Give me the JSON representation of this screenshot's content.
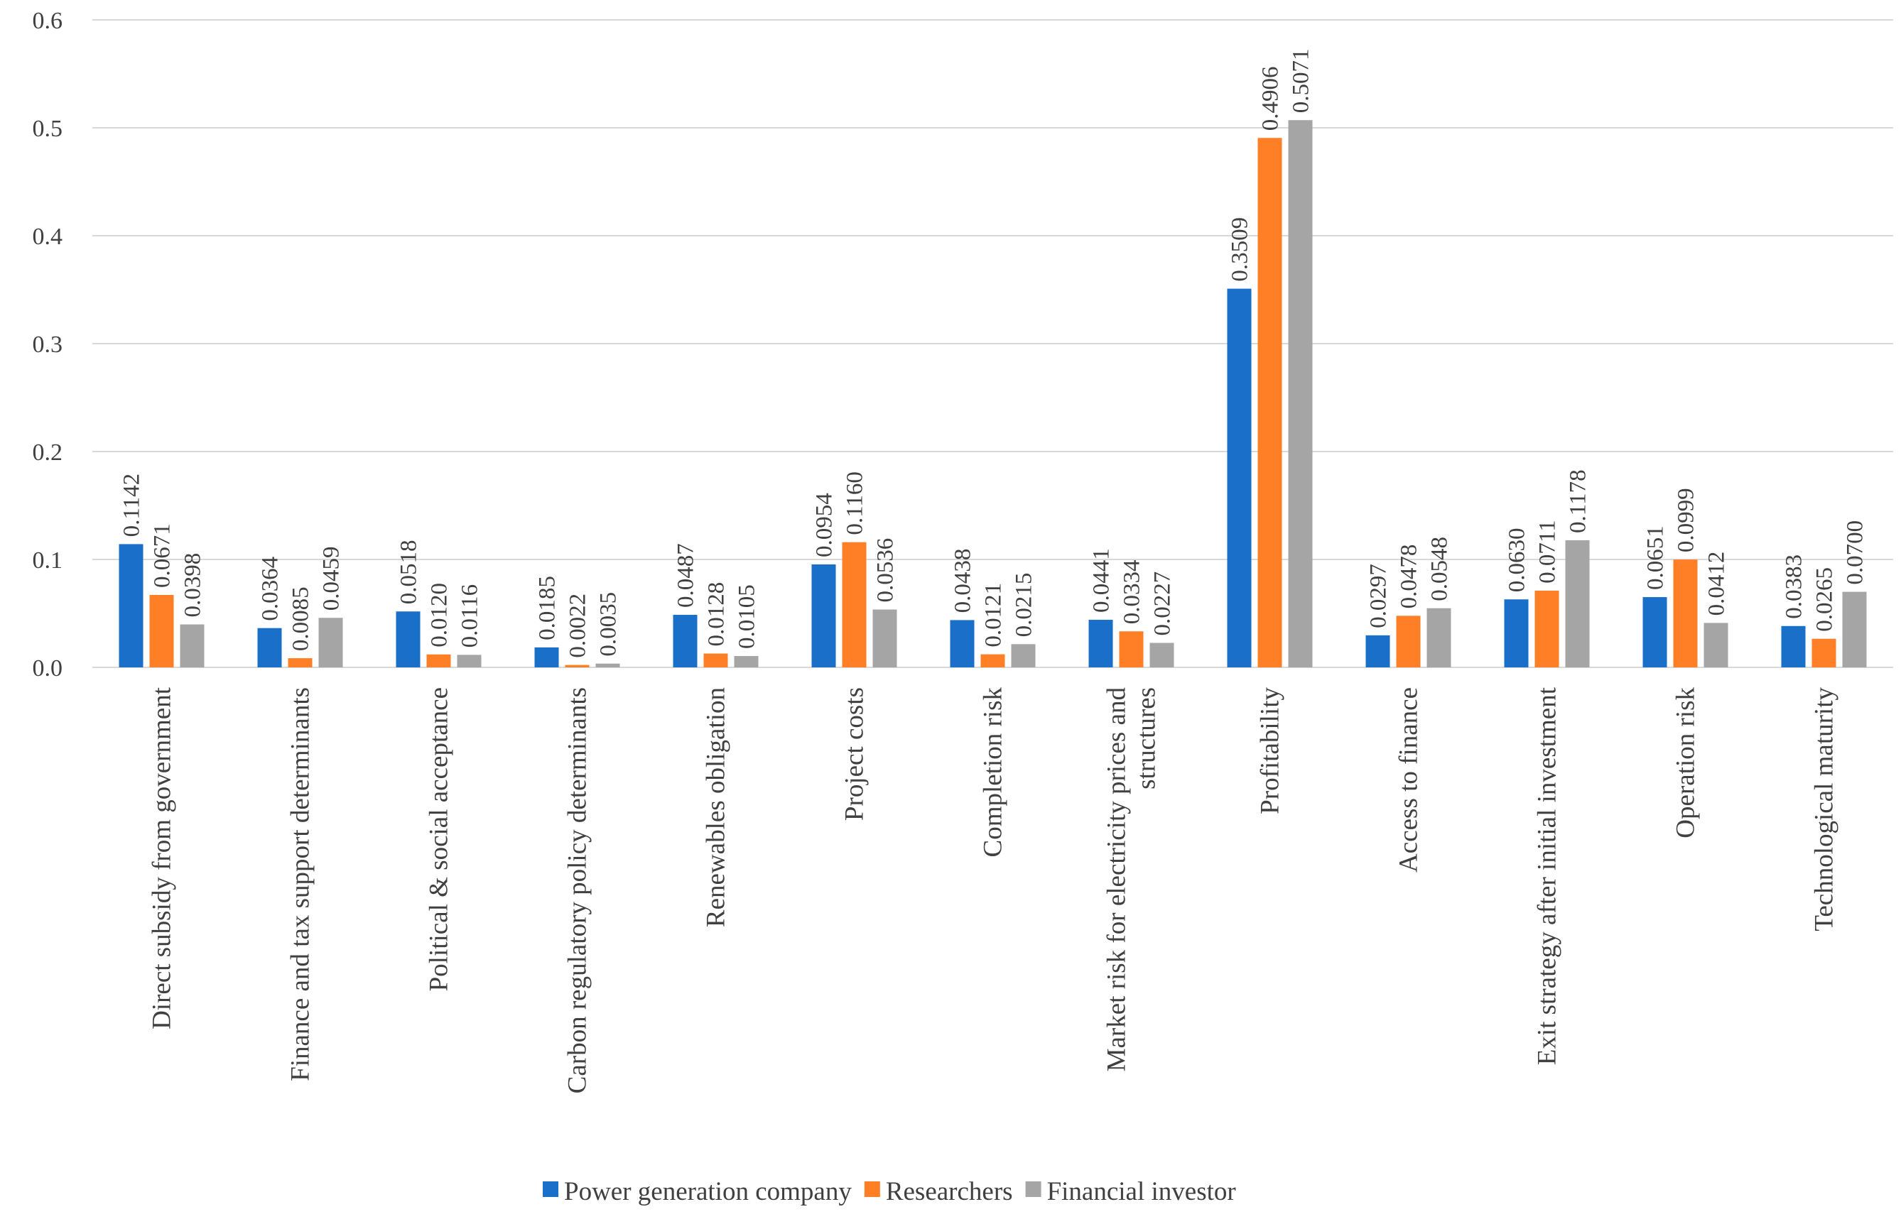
{
  "chart_data": {
    "type": "bar",
    "title": "",
    "xlabel": "",
    "ylabel": "",
    "ylim": [
      0,
      0.6
    ],
    "yticks": [
      "0.0",
      "0.1",
      "0.2",
      "0.3",
      "0.4",
      "0.5",
      "0.6"
    ],
    "grid": true,
    "legend_position": "bottom",
    "categories": [
      [
        "Direct subsidy from government"
      ],
      [
        "Finance and tax support determinants"
      ],
      [
        "Political & social acceptance"
      ],
      [
        "Carbon regulatory policy determinants"
      ],
      [
        "Renewables obligation"
      ],
      [
        "Project costs"
      ],
      [
        "Completion risk"
      ],
      [
        "Market risk for electricity prices and",
        "structures"
      ],
      [
        "Profitability"
      ],
      [
        "Access to finance"
      ],
      [
        "Exit strategy after initial investment"
      ],
      [
        "Operation risk"
      ],
      [
        "Technological maturity"
      ]
    ],
    "series": [
      {
        "name": "Power generation company",
        "color": "#1a6fc9",
        "values": [
          0.1142,
          0.0364,
          0.0518,
          0.0185,
          0.0487,
          0.0954,
          0.0438,
          0.0441,
          0.3509,
          0.0297,
          0.063,
          0.0651,
          0.0383
        ],
        "labels": [
          "0.1142",
          "0.0364",
          "0.0518",
          "0.0185",
          "0.0487",
          "0.0954",
          "0.0438",
          "0.0441",
          "0.3509",
          "0.0297",
          "0.0630",
          "0.0651",
          "0.0383"
        ]
      },
      {
        "name": "Researchers",
        "color": "#ff7f27",
        "values": [
          0.0671,
          0.0085,
          0.012,
          0.0022,
          0.0128,
          0.116,
          0.0121,
          0.0334,
          0.4906,
          0.0478,
          0.0711,
          0.0999,
          0.0265
        ],
        "labels": [
          "0.0671",
          "0.0085",
          "0.0120",
          "0.0022",
          "0.0128",
          "0.1160",
          "0.0121",
          "0.0334",
          "0.4906",
          "0.0478",
          "0.0711",
          "0.0999",
          "0.0265"
        ]
      },
      {
        "name": "Financial investor",
        "color": "#a5a5a5",
        "values": [
          0.0398,
          0.0459,
          0.0116,
          0.0035,
          0.0105,
          0.0536,
          0.0215,
          0.0227,
          0.5071,
          0.0548,
          0.1178,
          0.0412,
          0.07
        ],
        "labels": [
          "0.0398",
          "0.0459",
          "0.0116",
          "0.0035",
          "0.0105",
          "0.0536",
          "0.0215",
          "0.0227",
          "0.5071",
          "0.0548",
          "0.1178",
          "0.0412",
          "0.0700"
        ]
      }
    ]
  }
}
